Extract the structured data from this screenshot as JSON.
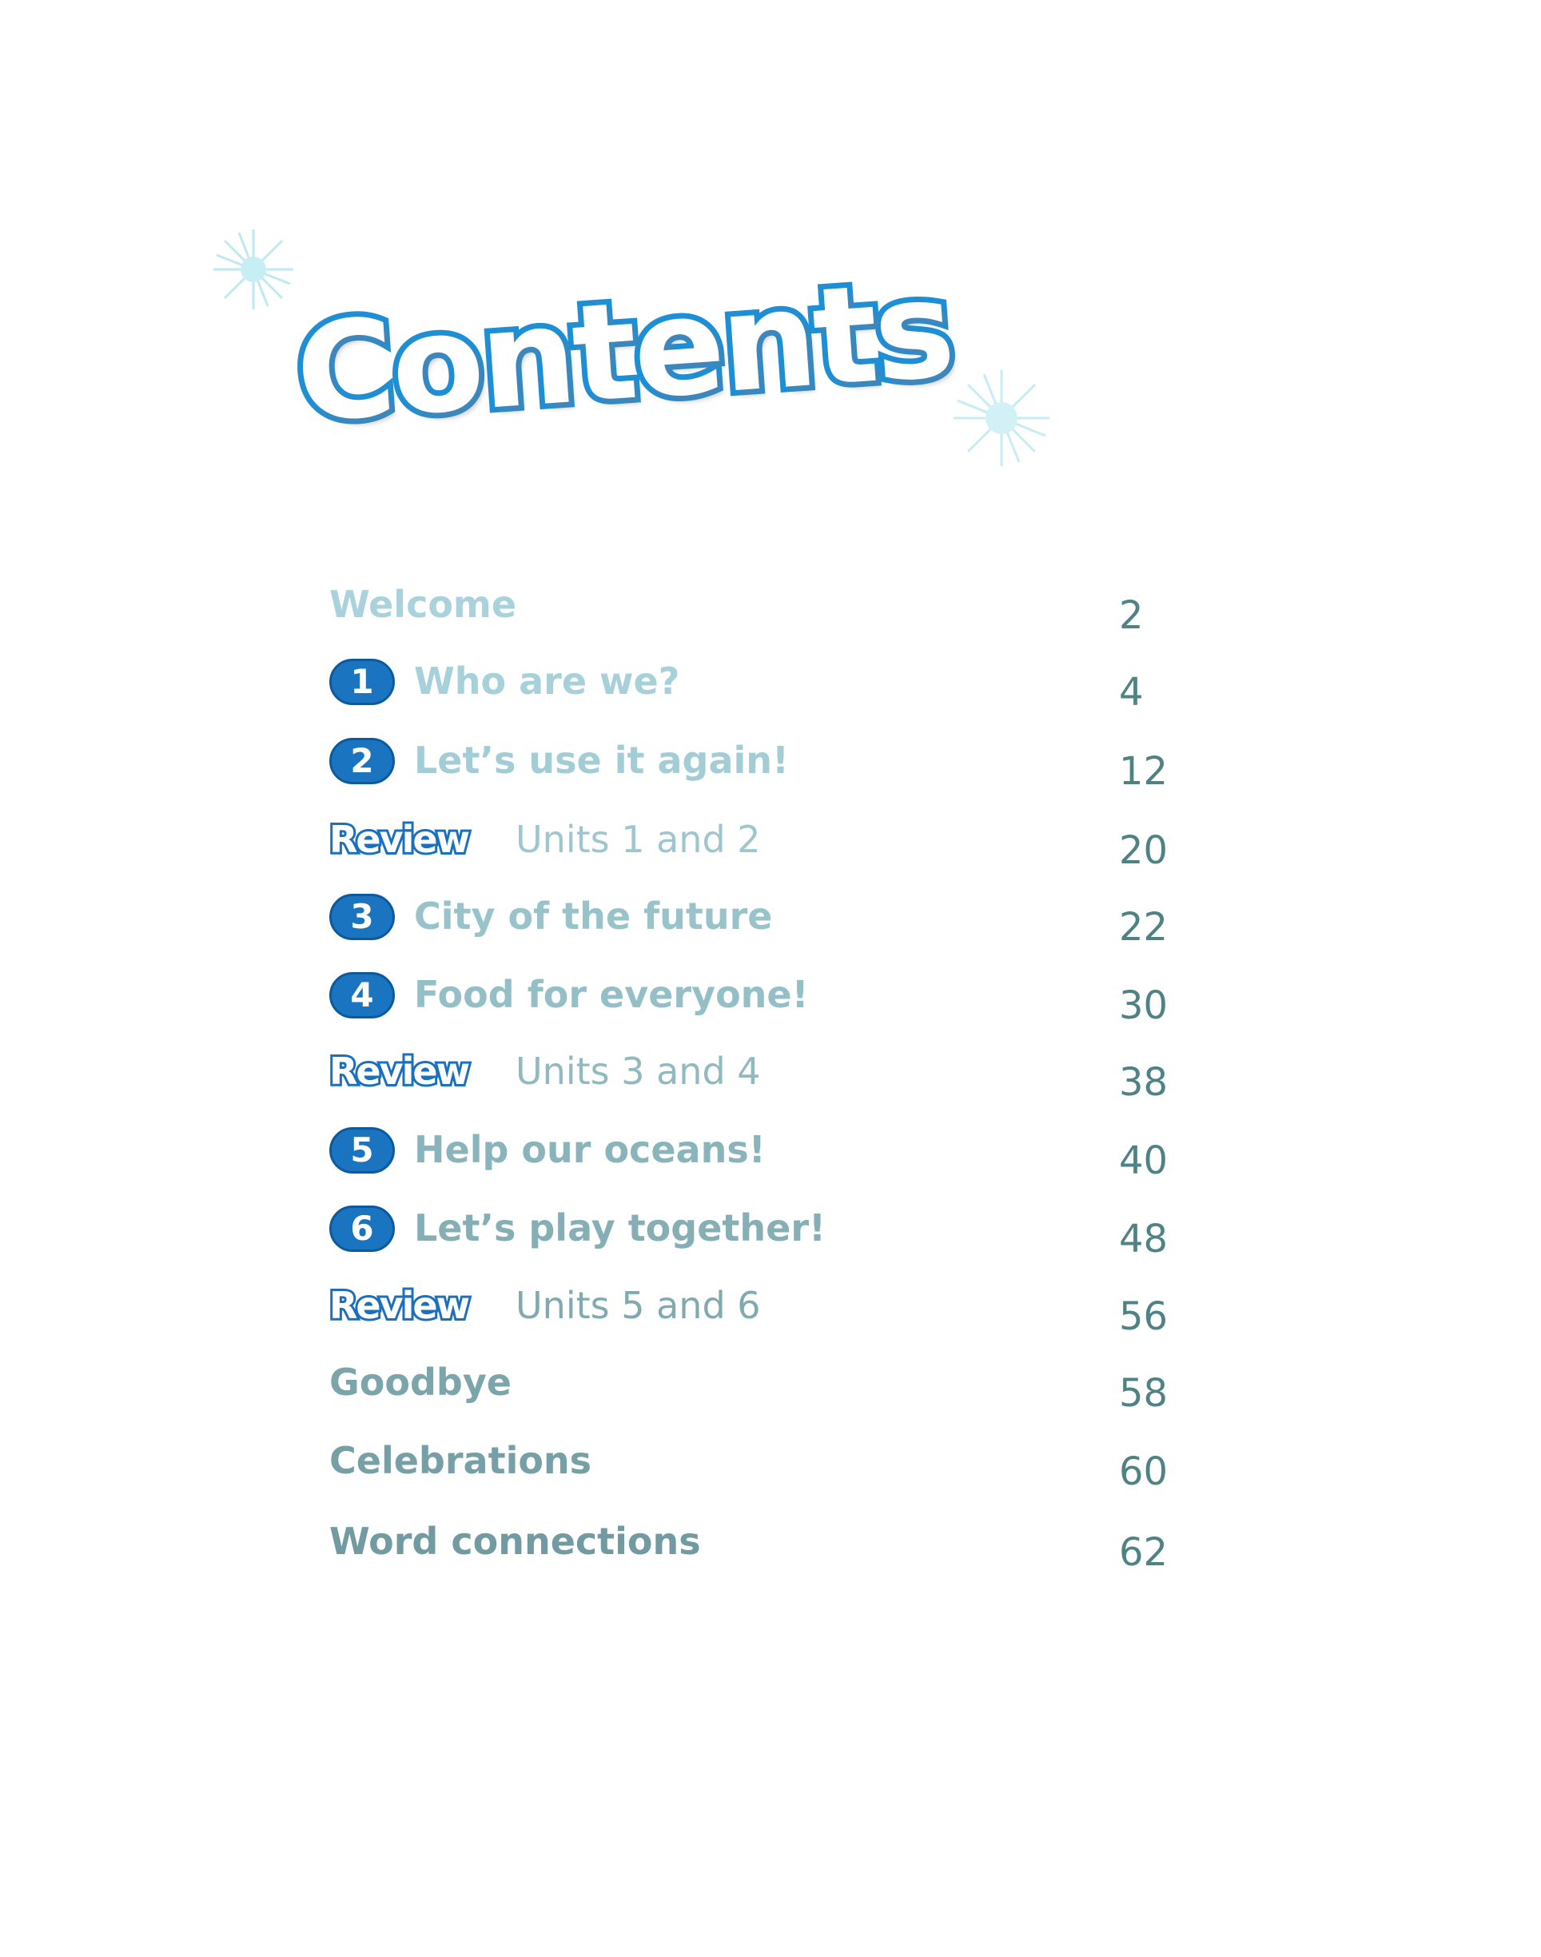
{
  "title": "Contents",
  "colors": {
    "title_outline": "#1e8fd5",
    "badge": "#1a74c0",
    "page_number": "#4f8284",
    "star": "#bfe9f2"
  },
  "entries": [
    {
      "type": "plain",
      "label": "Welcome",
      "page": "2",
      "color": "#a9d2dc"
    },
    {
      "type": "unit",
      "badge": "1",
      "label": "Who are we?",
      "page": "4",
      "color": "#a6d0da"
    },
    {
      "type": "unit",
      "badge": "2",
      "label": "Let’s use it again!",
      "page": "12",
      "color": "#a3cdd6"
    },
    {
      "type": "review",
      "badge": "Review",
      "label": "Units 1 and 2",
      "page": "20",
      "color": "#9ec6cf"
    },
    {
      "type": "unit",
      "badge": "3",
      "label": "City of the future",
      "page": "22",
      "color": "#99c3cb"
    },
    {
      "type": "unit",
      "badge": "4",
      "label": "Food for everyone!",
      "page": "30",
      "color": "#95bfc6"
    },
    {
      "type": "review",
      "badge": "Review",
      "label": "Units 3 and 4",
      "page": "38",
      "color": "#90b9c0"
    },
    {
      "type": "unit",
      "badge": "5",
      "label": "Help our oceans!",
      "page": "40",
      "color": "#8ab4bb"
    },
    {
      "type": "unit",
      "badge": "6",
      "label": "Let’s play together!",
      "page": "48",
      "color": "#85afb5"
    },
    {
      "type": "review",
      "badge": "Review",
      "label": "Units 5 and 6",
      "page": "56",
      "color": "#80aab0"
    },
    {
      "type": "plain",
      "label": "Goodbye",
      "page": "58",
      "color": "#7ba5ab"
    },
    {
      "type": "plain",
      "label": "Celebrations",
      "page": "60",
      "color": "#76a0a6"
    },
    {
      "type": "plain",
      "label": "Word connections",
      "page": "62",
      "color": "#719ba1"
    }
  ]
}
